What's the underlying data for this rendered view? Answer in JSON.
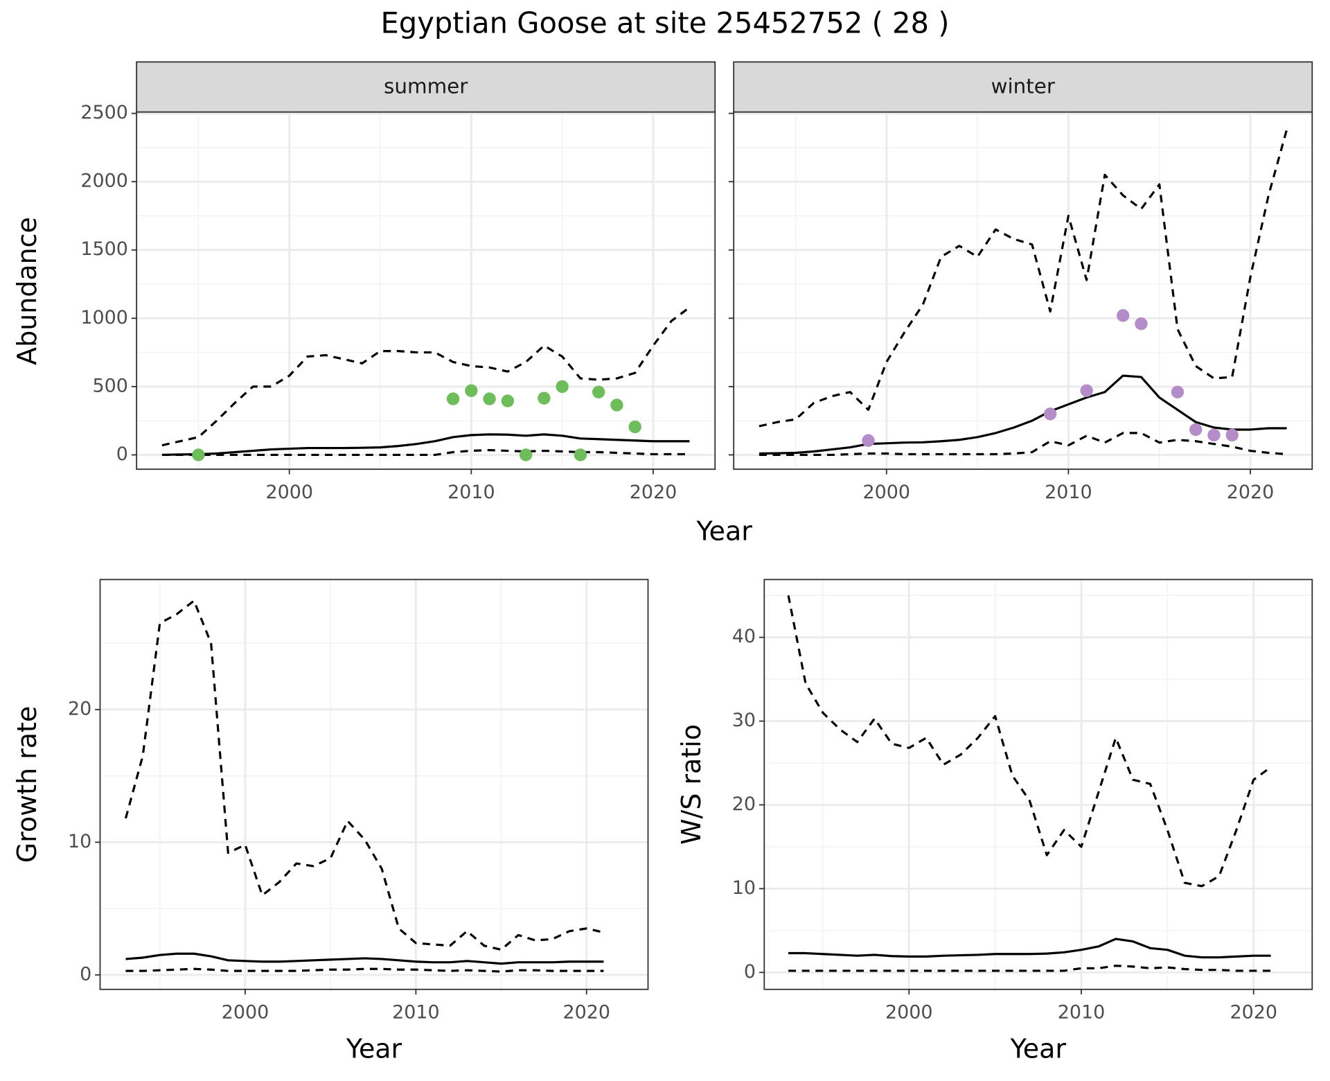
{
  "title": "Egyptian Goose at site 25452752 ( 28 )",
  "top_xlabel": "Year",
  "top_ylabel": "Abundance",
  "chart_data": [
    {
      "type": "line",
      "strip": "summer",
      "ytick_labels": true,
      "xlim": [
        1991.6,
        2023.4
      ],
      "ylim": [
        -105,
        2510
      ],
      "xticks": [
        2000,
        2010,
        2020
      ],
      "yticks": [
        0,
        500,
        1000,
        1500,
        2000,
        2500
      ],
      "grid": true,
      "x": [
        1993,
        1994,
        1995,
        1996,
        1997,
        1998,
        1999,
        2000,
        2001,
        2002,
        2003,
        2004,
        2005,
        2006,
        2007,
        2008,
        2009,
        2010,
        2011,
        2012,
        2013,
        2014,
        2015,
        2016,
        2017,
        2018,
        2019,
        2020,
        2021,
        2022
      ],
      "series": [
        {
          "style": "dashed",
          "color": "#000000",
          "values": [
            70,
            100,
            130,
            250,
            380,
            500,
            500,
            580,
            720,
            730,
            700,
            670,
            760,
            760,
            750,
            750,
            680,
            650,
            640,
            610,
            680,
            800,
            720,
            560,
            550,
            560,
            600,
            800,
            980,
            1080
          ]
        },
        {
          "style": "solid",
          "color": "#000000",
          "values": [
            0,
            3,
            5,
            10,
            20,
            30,
            40,
            45,
            50,
            50,
            50,
            52,
            55,
            65,
            80,
            100,
            130,
            145,
            150,
            148,
            140,
            150,
            140,
            120,
            115,
            110,
            105,
            100,
            100,
            100
          ]
        },
        {
          "style": "dashed",
          "color": "#000000",
          "values": [
            0,
            0,
            0,
            0,
            0,
            0,
            0,
            0,
            0,
            0,
            0,
            0,
            0,
            0,
            0,
            0,
            20,
            30,
            35,
            30,
            25,
            30,
            25,
            20,
            20,
            15,
            10,
            5,
            5,
            5
          ]
        }
      ],
      "points": {
        "color": "#6dbd5b",
        "x": [
          1995,
          2009,
          2010,
          2011,
          2012,
          2013,
          2014,
          2015,
          2016,
          2017,
          2018,
          2019
        ],
        "values": [
          0,
          410,
          470,
          410,
          395,
          0,
          415,
          500,
          0,
          460,
          365,
          205
        ]
      }
    },
    {
      "type": "line",
      "strip": "winter",
      "ytick_labels": false,
      "xlim": [
        1991.6,
        2023.4
      ],
      "ylim": [
        -105,
        2510
      ],
      "xticks": [
        2000,
        2010,
        2020
      ],
      "yticks": [
        0,
        500,
        1000,
        1500,
        2000,
        2500
      ],
      "grid": true,
      "x": [
        1993,
        1994,
        1995,
        1996,
        1997,
        1998,
        1999,
        2000,
        2001,
        2002,
        2003,
        2004,
        2005,
        2006,
        2007,
        2008,
        2009,
        2010,
        2011,
        2012,
        2013,
        2014,
        2015,
        2016,
        2017,
        2018,
        2019,
        2020,
        2021,
        2022
      ],
      "series": [
        {
          "style": "dashed",
          "color": "#000000",
          "values": [
            210,
            240,
            260,
            380,
            430,
            460,
            330,
            680,
            900,
            1100,
            1450,
            1530,
            1450,
            1650,
            1580,
            1540,
            1050,
            1750,
            1280,
            2050,
            1900,
            1800,
            1980,
            920,
            650,
            560,
            570,
            1300,
            1900,
            2380
          ]
        },
        {
          "style": "solid",
          "color": "#000000",
          "values": [
            10,
            12,
            15,
            25,
            40,
            55,
            80,
            85,
            90,
            92,
            100,
            110,
            130,
            160,
            200,
            250,
            320,
            370,
            420,
            460,
            580,
            570,
            420,
            330,
            240,
            200,
            185,
            185,
            195,
            195
          ]
        },
        {
          "style": "dashed",
          "color": "#000000",
          "values": [
            0,
            0,
            0,
            0,
            0,
            5,
            10,
            10,
            5,
            5,
            5,
            5,
            5,
            5,
            10,
            20,
            100,
            70,
            140,
            90,
            160,
            160,
            90,
            110,
            100,
            80,
            60,
            30,
            15,
            5
          ]
        }
      ],
      "points": {
        "color": "#b48dc8",
        "x": [
          1999,
          2009,
          2011,
          2013,
          2014,
          2016,
          2017,
          2018,
          2019
        ],
        "values": [
          105,
          300,
          470,
          1020,
          960,
          460,
          185,
          145,
          145
        ]
      }
    },
    {
      "type": "line",
      "xlabel": "Year",
      "ylabel": "Growth rate",
      "ytick_labels": true,
      "xlim": [
        1991.5,
        2023.6
      ],
      "ylim": [
        -1.09,
        29.8
      ],
      "xticks": [
        2000,
        2010,
        2020
      ],
      "yticks": [
        0,
        10,
        20
      ],
      "grid": true,
      "x": [
        1993,
        1994,
        1995,
        1996,
        1997,
        1998,
        1999,
        2000,
        2001,
        2002,
        2003,
        2004,
        2005,
        2006,
        2007,
        2008,
        2009,
        2010,
        2011,
        2012,
        2013,
        2014,
        2015,
        2016,
        2017,
        2018,
        2019,
        2020,
        2021
      ],
      "series": [
        {
          "style": "dashed",
          "color": "#000000",
          "values": [
            11.8,
            16.5,
            26.5,
            27.2,
            28.2,
            25,
            9.2,
            9.8,
            6,
            7,
            8.4,
            8.2,
            8.8,
            11.6,
            10.2,
            8,
            3.5,
            2.4,
            2.3,
            2.2,
            3.3,
            2.2,
            1.9,
            3,
            2.6,
            2.7,
            3.3,
            3.5,
            3.2
          ]
        },
        {
          "style": "solid",
          "color": "#000000",
          "values": [
            1.2,
            1.3,
            1.5,
            1.6,
            1.6,
            1.4,
            1.1,
            1.05,
            1.0,
            1.0,
            1.05,
            1.1,
            1.15,
            1.2,
            1.25,
            1.2,
            1.1,
            1.0,
            0.95,
            0.95,
            1.05,
            0.95,
            0.85,
            0.95,
            0.95,
            0.95,
            1.0,
            1.0,
            1.0
          ]
        },
        {
          "style": "dashed",
          "color": "#000000",
          "values": [
            0.3,
            0.3,
            0.35,
            0.4,
            0.45,
            0.4,
            0.3,
            0.3,
            0.3,
            0.3,
            0.3,
            0.35,
            0.4,
            0.4,
            0.45,
            0.45,
            0.4,
            0.4,
            0.35,
            0.3,
            0.35,
            0.3,
            0.25,
            0.35,
            0.35,
            0.3,
            0.3,
            0.3,
            0.3
          ]
        }
      ]
    },
    {
      "type": "line",
      "xlabel": "Year",
      "ylabel": "W/S ratio",
      "ytick_labels": true,
      "xlim": [
        1991.6,
        2023.4
      ],
      "ylim": [
        -2.02,
        46.9
      ],
      "xticks": [
        2000,
        2010,
        2020
      ],
      "yticks": [
        0,
        10,
        20,
        30,
        40
      ],
      "grid": true,
      "x": [
        1993,
        1994,
        1995,
        1996,
        1997,
        1998,
        1999,
        2000,
        2001,
        2002,
        2003,
        2004,
        2005,
        2006,
        2007,
        2008,
        2009,
        2010,
        2011,
        2012,
        2013,
        2014,
        2015,
        2016,
        2017,
        2018,
        2019,
        2020,
        2021
      ],
      "series": [
        {
          "style": "dashed",
          "color": "#000000",
          "values": [
            45,
            34.5,
            31,
            29,
            27.5,
            30.3,
            27.3,
            26.8,
            28,
            24.8,
            26,
            28,
            30.6,
            23.5,
            20.5,
            14,
            17,
            15,
            21.5,
            28,
            23,
            22.5,
            17,
            10.7,
            10.3,
            11.5,
            17,
            23,
            24.5
          ]
        },
        {
          "style": "solid",
          "color": "#000000",
          "values": [
            2.3,
            2.3,
            2.2,
            2.1,
            2.0,
            2.1,
            1.95,
            1.9,
            1.9,
            2.0,
            2.05,
            2.1,
            2.2,
            2.2,
            2.2,
            2.25,
            2.4,
            2.7,
            3.1,
            4.0,
            3.7,
            2.9,
            2.7,
            2.0,
            1.8,
            1.8,
            1.9,
            2.0,
            2.0
          ]
        },
        {
          "style": "dashed",
          "color": "#000000",
          "values": [
            0.2,
            0.2,
            0.2,
            0.2,
            0.2,
            0.2,
            0.2,
            0.2,
            0.2,
            0.2,
            0.2,
            0.2,
            0.2,
            0.2,
            0.2,
            0.2,
            0.2,
            0.5,
            0.5,
            0.8,
            0.7,
            0.5,
            0.6,
            0.4,
            0.3,
            0.3,
            0.2,
            0.2,
            0.2
          ]
        }
      ]
    }
  ]
}
